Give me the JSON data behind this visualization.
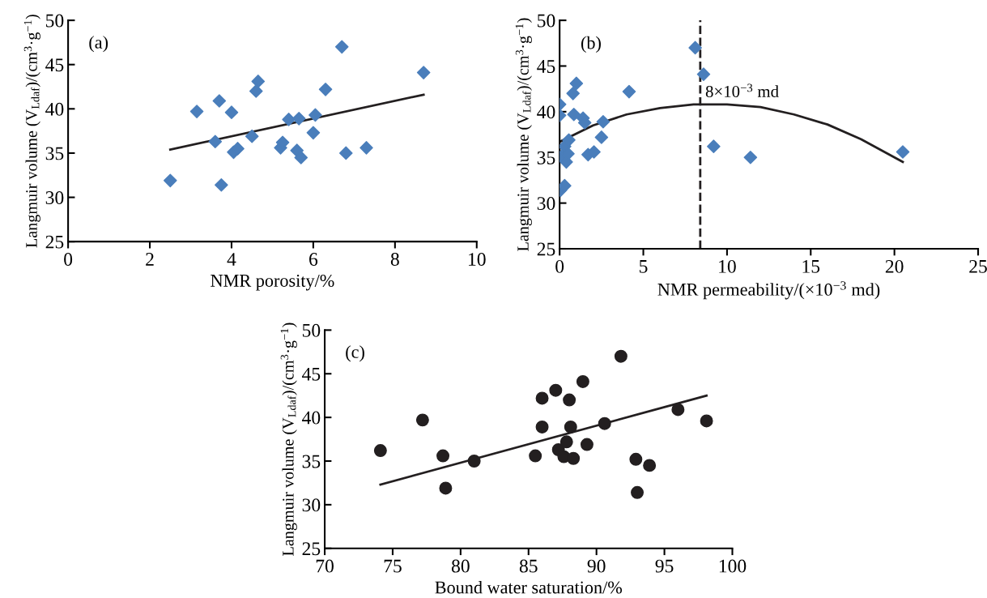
{
  "chart_data": [
    {
      "type": "scatter",
      "title": "(a)",
      "xlabel": "NMR porosity/%",
      "ylabel": "Langmuir volume (V$_{Ldaf}$)/(cm$^{3}$·g$^{−1}$)",
      "xlim": [
        0,
        10
      ],
      "xticks": [
        0,
        2,
        4,
        6,
        8,
        10
      ],
      "ylim": [
        25,
        50
      ],
      "yticks": [
        25,
        30,
        35,
        40,
        45,
        50
      ],
      "grid": false,
      "legend": false,
      "series": [
        {
          "marker": "diamond",
          "color": "#4a7ebb",
          "x": [
            2.5,
            3.15,
            3.6,
            3.7,
            3.75,
            4.0,
            4.05,
            4.15,
            4.5,
            4.6,
            4.65,
            5.2,
            5.25,
            5.4,
            5.6,
            5.65,
            5.7,
            6.0,
            6.05,
            6.3,
            6.7,
            6.8,
            7.3,
            8.7
          ],
          "values": [
            31.9,
            39.7,
            36.3,
            40.9,
            31.4,
            39.6,
            35.1,
            35.5,
            36.9,
            42.0,
            43.1,
            35.6,
            36.2,
            38.8,
            35.3,
            38.9,
            34.5,
            37.3,
            39.3,
            42.2,
            47.0,
            35.0,
            35.6,
            44.1
          ]
        },
        {
          "type": "line",
          "marker": "none",
          "color": "#231f20",
          "x": [
            2.5,
            8.7
          ],
          "values": [
            35.4,
            41.6
          ]
        }
      ]
    },
    {
      "type": "scatter",
      "title": "(b)",
      "xlabel": "NMR permeability/(×10$^{−3}$ md)",
      "ylabel": "Langmuir volume (V$_{Ldaf}$)/(cm$^{3}$·g$^{−1}$)",
      "xlim": [
        0,
        25
      ],
      "xticks": [
        0,
        5,
        10,
        15,
        20,
        25
      ],
      "ylim": [
        25,
        50
      ],
      "yticks": [
        25,
        30,
        35,
        40,
        45,
        50
      ],
      "grid": false,
      "legend": false,
      "ref_lines": [
        {
          "axis": "x",
          "value": 8.4,
          "label": "8×10$^{−3}$ md",
          "color": "#231f20",
          "line_style": "dashed"
        }
      ],
      "series": [
        {
          "marker": "diamond",
          "color": "#4a7ebb",
          "x": [
            0.0,
            0.0,
            0.1,
            0.05,
            0.3,
            0.3,
            0.4,
            0.5,
            0.55,
            0.8,
            0.85,
            1.0,
            1.4,
            1.5,
            1.7,
            2.05,
            2.5,
            2.6,
            4.15,
            8.1,
            8.6,
            9.2,
            11.4,
            20.5
          ],
          "values": [
            40.8,
            39.6,
            35.1,
            31.4,
            31.9,
            36.2,
            34.5,
            35.4,
            36.9,
            42.0,
            39.7,
            43.1,
            39.3,
            38.8,
            35.3,
            35.6,
            37.2,
            38.9,
            42.2,
            47.0,
            44.1,
            36.2,
            35.0,
            35.6
          ]
        },
        {
          "type": "line",
          "marker": "none",
          "color": "#231f20",
          "x": [
            0,
            2,
            4,
            6,
            8,
            10,
            12,
            14,
            16,
            18,
            20.5
          ],
          "values": [
            36.7,
            38.5,
            39.7,
            40.4,
            40.8,
            40.8,
            40.5,
            39.7,
            38.6,
            37.0,
            34.5
          ]
        }
      ]
    },
    {
      "type": "scatter",
      "title": "(c)",
      "xlabel": "Bound water saturation/%",
      "ylabel": "Langmuir volume (V$_{Ldaf}$)/(cm$^{3}$·g$^{−1}$)",
      "xlim": [
        70,
        100
      ],
      "xticks": [
        70,
        75,
        80,
        85,
        90,
        95,
        100
      ],
      "ylim": [
        25,
        50
      ],
      "yticks": [
        25,
        30,
        35,
        40,
        45,
        50
      ],
      "grid": false,
      "legend": false,
      "series": [
        {
          "marker": "circle",
          "color": "#231f20",
          "x": [
            74.1,
            77.2,
            78.7,
            78.9,
            81.0,
            85.5,
            86.0,
            86.0,
            87.0,
            87.2,
            87.6,
            87.8,
            88.0,
            88.1,
            88.3,
            89.0,
            89.3,
            90.6,
            91.8,
            92.9,
            93.0,
            93.9,
            96.0,
            98.1
          ],
          "values": [
            36.2,
            39.7,
            35.6,
            31.9,
            35.0,
            35.6,
            42.2,
            38.9,
            43.1,
            36.3,
            35.5,
            37.2,
            42.0,
            38.9,
            35.3,
            44.1,
            36.9,
            39.3,
            47.0,
            35.2,
            31.4,
            34.5,
            40.9,
            39.6
          ]
        },
        {
          "type": "line",
          "marker": "none",
          "color": "#231f20",
          "x": [
            74.1,
            98.1
          ],
          "values": [
            32.3,
            42.5
          ]
        }
      ]
    }
  ]
}
